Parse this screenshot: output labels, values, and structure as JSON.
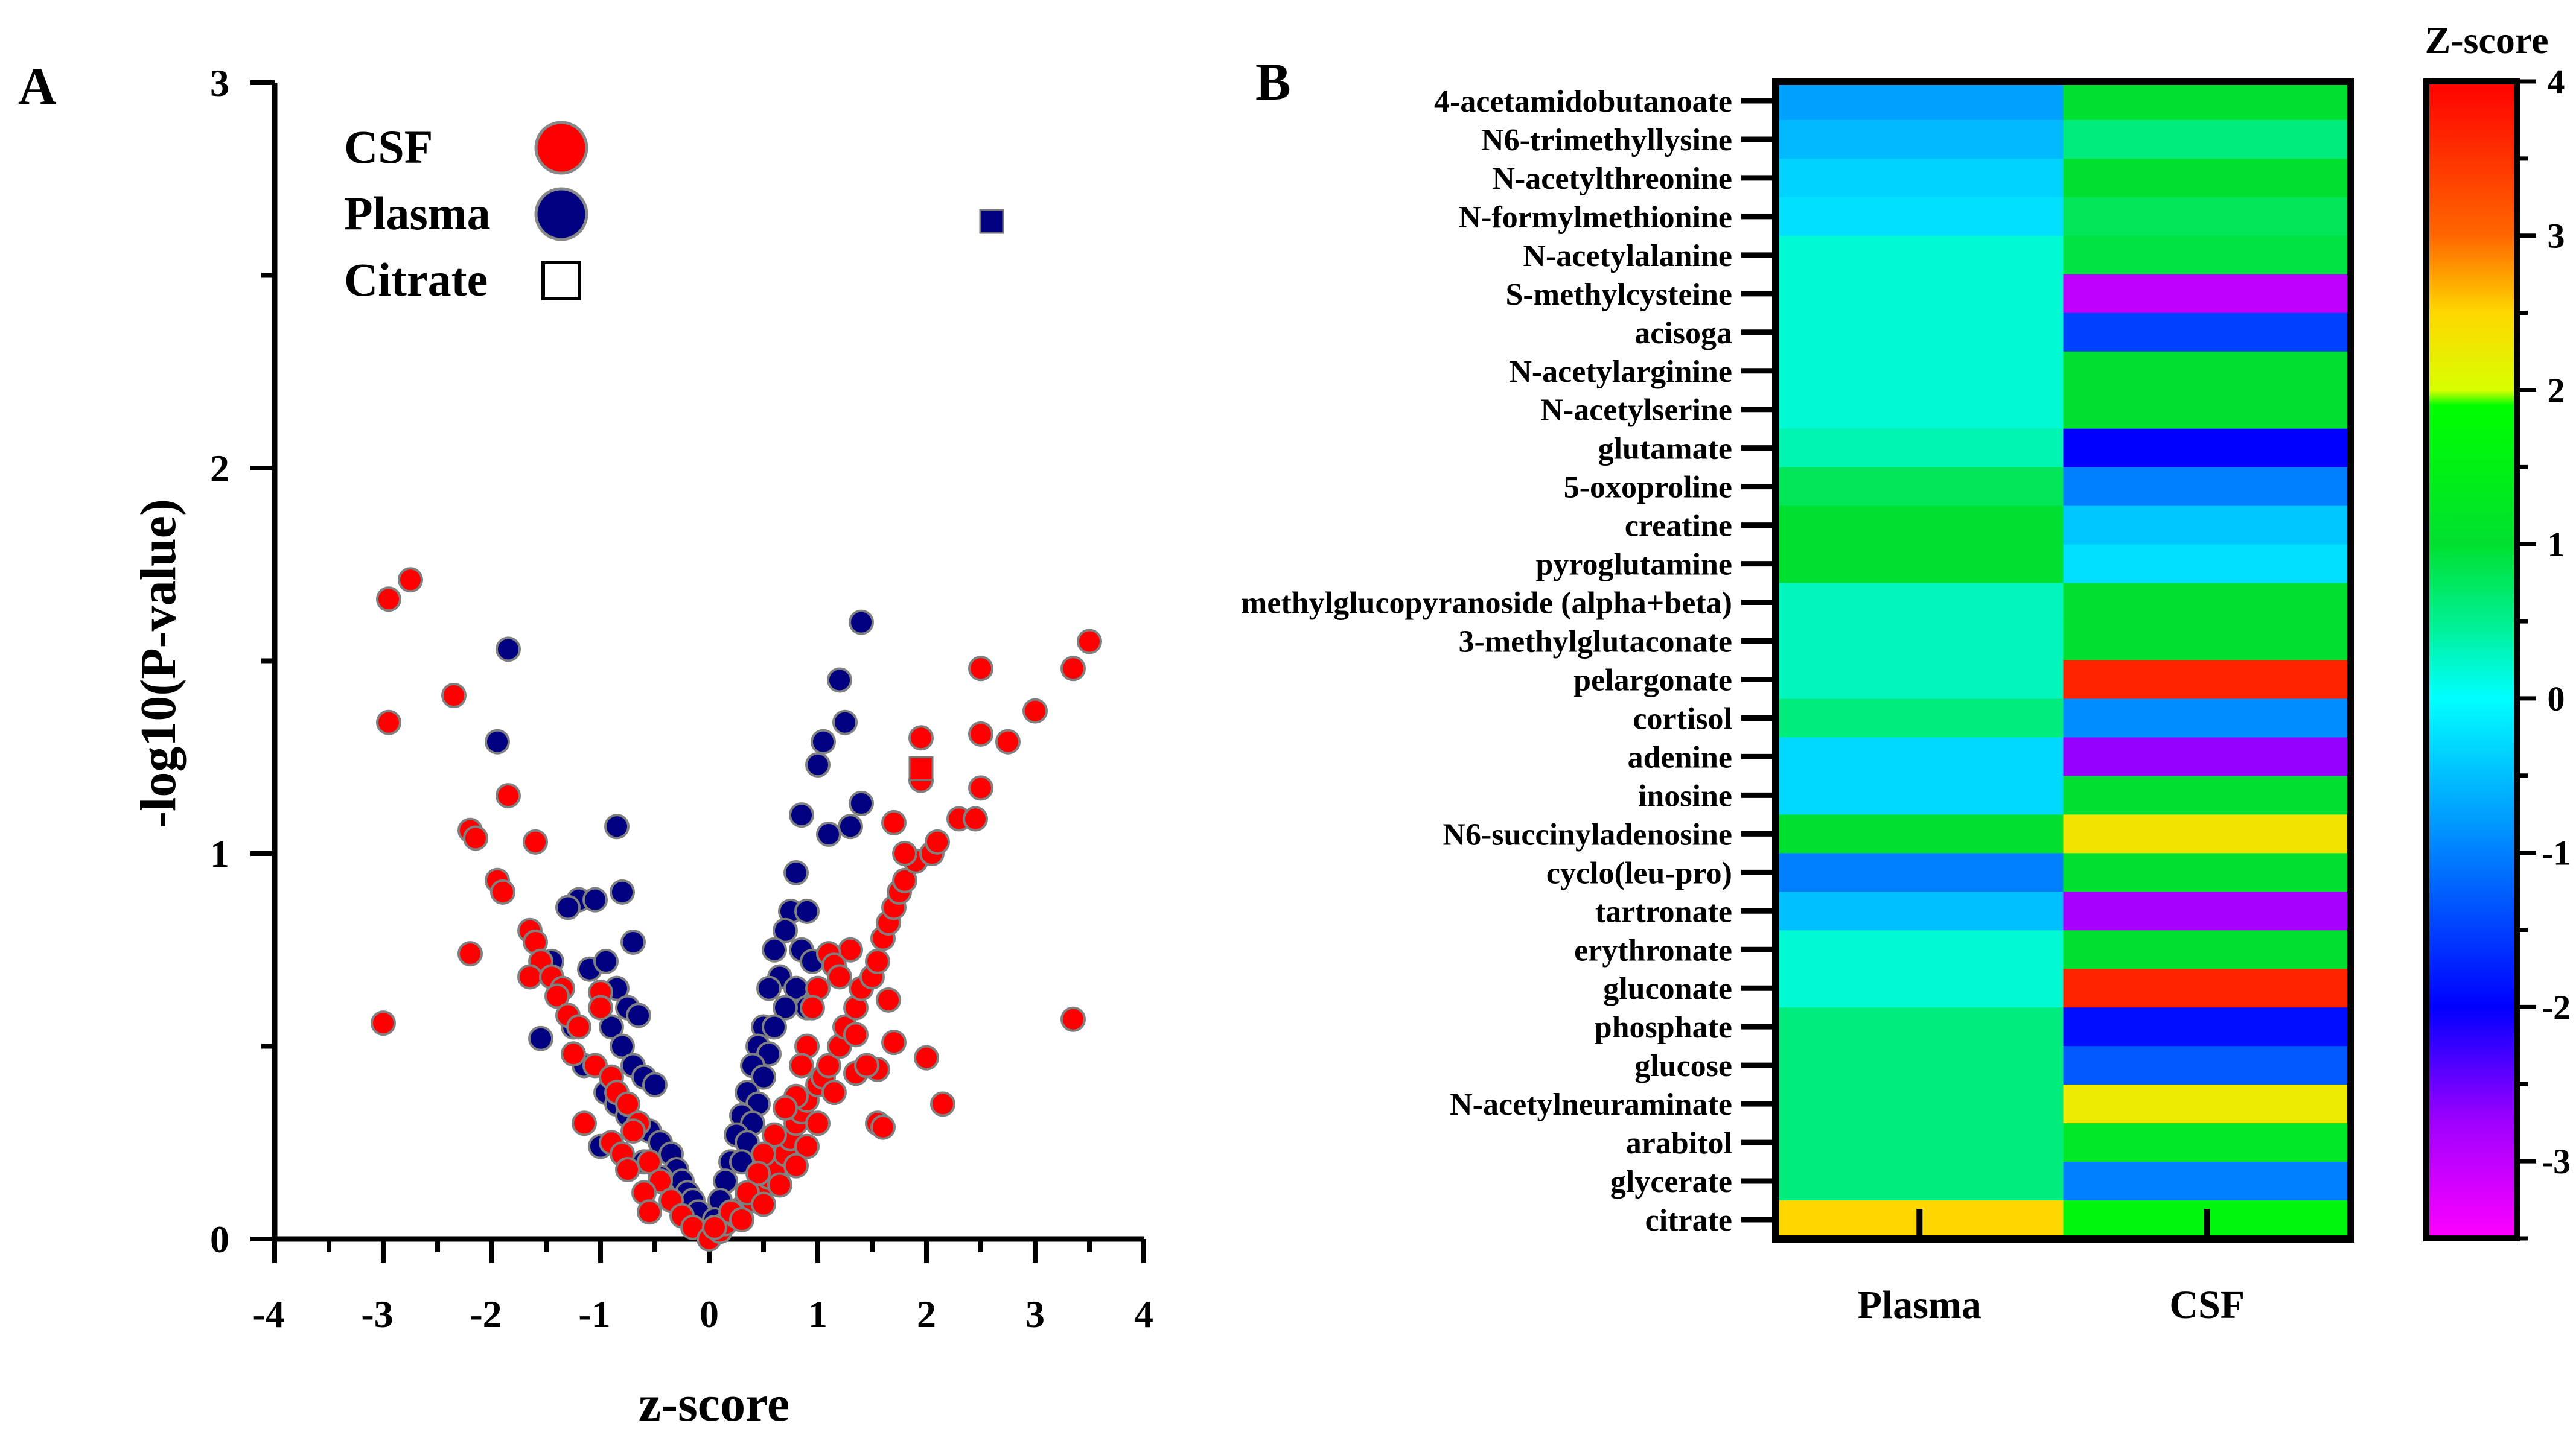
{
  "chart_data": [
    {
      "type": "scatter",
      "panel_label": "A",
      "xlabel": "z-score",
      "ylabel": "-log10(P-value)",
      "xlim": [
        -4,
        4
      ],
      "ylim": [
        0,
        3
      ],
      "x_ticks": [
        "-4",
        "-3",
        "-2",
        "-1",
        "0",
        "1",
        "2",
        "3",
        "4"
      ],
      "y_ticks": [
        "0",
        "1",
        "2",
        "3"
      ],
      "legend": [
        {
          "label": "CSF",
          "marker": "circle",
          "color": "#ff0000"
        },
        {
          "label": "Plasma",
          "marker": "circle",
          "color": "#000080"
        },
        {
          "label": "Citrate",
          "marker": "square",
          "color": "#ffffff"
        }
      ],
      "series": [
        {
          "name": "Plasma",
          "color": "#000080",
          "points": [
            [
              -1.85,
              1.53
            ],
            [
              -1.95,
              1.29
            ],
            [
              -0.85,
              1.07
            ],
            [
              -1.2,
              0.88
            ],
            [
              -1.05,
              0.88
            ],
            [
              -0.8,
              0.9
            ],
            [
              -1.3,
              0.86
            ],
            [
              -0.7,
              0.77
            ],
            [
              -1.45,
              0.72
            ],
            [
              -1.1,
              0.7
            ],
            [
              -0.95,
              0.72
            ],
            [
              -0.85,
              0.65
            ],
            [
              -0.75,
              0.6
            ],
            [
              -0.65,
              0.58
            ],
            [
              -1.25,
              0.55
            ],
            [
              -0.9,
              0.55
            ],
            [
              -1.55,
              0.52
            ],
            [
              -1.15,
              0.45
            ],
            [
              -0.8,
              0.5
            ],
            [
              -0.7,
              0.45
            ],
            [
              -0.6,
              0.42
            ],
            [
              -0.5,
              0.4
            ],
            [
              -0.95,
              0.38
            ],
            [
              -0.85,
              0.35
            ],
            [
              -0.75,
              0.32
            ],
            [
              -0.65,
              0.3
            ],
            [
              -0.55,
              0.28
            ],
            [
              -0.45,
              0.25
            ],
            [
              -0.35,
              0.22
            ],
            [
              -0.3,
              0.18
            ],
            [
              -0.25,
              0.15
            ],
            [
              -0.2,
              0.12
            ],
            [
              -0.15,
              0.1
            ],
            [
              -0.1,
              0.07
            ],
            [
              -1.0,
              0.24
            ],
            [
              -0.6,
              0.2
            ],
            [
              -0.45,
              0.16
            ],
            [
              1.4,
              1.6
            ],
            [
              1.2,
              1.45
            ],
            [
              1.25,
              1.34
            ],
            [
              1.0,
              1.23
            ],
            [
              1.05,
              1.29
            ],
            [
              1.4,
              1.13
            ],
            [
              1.3,
              1.07
            ],
            [
              1.1,
              1.05
            ],
            [
              0.85,
              1.1
            ],
            [
              0.8,
              0.95
            ],
            [
              0.75,
              0.85
            ],
            [
              0.9,
              0.85
            ],
            [
              0.7,
              0.8
            ],
            [
              0.6,
              0.75
            ],
            [
              0.85,
              0.75
            ],
            [
              0.95,
              0.72
            ],
            [
              0.65,
              0.68
            ],
            [
              0.55,
              0.65
            ],
            [
              0.8,
              0.65
            ],
            [
              0.9,
              0.6
            ],
            [
              0.7,
              0.6
            ],
            [
              0.5,
              0.55
            ],
            [
              0.6,
              0.55
            ],
            [
              0.45,
              0.5
            ],
            [
              0.55,
              0.48
            ],
            [
              0.4,
              0.45
            ],
            [
              0.5,
              0.42
            ],
            [
              0.35,
              0.38
            ],
            [
              0.45,
              0.35
            ],
            [
              0.3,
              0.32
            ],
            [
              0.4,
              0.3
            ],
            [
              0.25,
              0.27
            ],
            [
              0.35,
              0.25
            ],
            [
              0.2,
              0.2
            ],
            [
              0.3,
              0.2
            ],
            [
              0.15,
              0.15
            ],
            [
              0.1,
              0.1
            ],
            [
              0.05,
              0.05
            ]
          ]
        },
        {
          "name": "CSF",
          "color": "#ff0000",
          "points": [
            [
              -2.75,
              1.71
            ],
            [
              -2.95,
              1.66
            ],
            [
              -2.95,
              1.34
            ],
            [
              -2.35,
              1.41
            ],
            [
              -3.0,
              0.56
            ],
            [
              -2.2,
              1.06
            ],
            [
              -2.15,
              1.04
            ],
            [
              -1.85,
              1.15
            ],
            [
              -1.6,
              1.03
            ],
            [
              -2.2,
              0.74
            ],
            [
              -1.95,
              0.93
            ],
            [
              -1.9,
              0.9
            ],
            [
              -1.65,
              0.8
            ],
            [
              -1.6,
              0.77
            ],
            [
              -1.55,
              0.72
            ],
            [
              -1.65,
              0.68
            ],
            [
              -1.45,
              0.68
            ],
            [
              -1.35,
              0.65
            ],
            [
              -1.4,
              0.63
            ],
            [
              -1.3,
              0.58
            ],
            [
              -1.2,
              0.55
            ],
            [
              -1.0,
              0.64
            ],
            [
              -1.25,
              0.48
            ],
            [
              -1.05,
              0.45
            ],
            [
              -0.9,
              0.42
            ],
            [
              -1.0,
              0.6
            ],
            [
              -0.85,
              0.38
            ],
            [
              -0.75,
              0.35
            ],
            [
              -0.65,
              0.3
            ],
            [
              -0.7,
              0.28
            ],
            [
              -1.15,
              0.3
            ],
            [
              -0.9,
              0.25
            ],
            [
              -0.8,
              0.22
            ],
            [
              -0.55,
              0.2
            ],
            [
              -0.75,
              0.18
            ],
            [
              -0.45,
              0.15
            ],
            [
              -0.6,
              0.12
            ],
            [
              -0.35,
              0.1
            ],
            [
              -0.55,
              0.07
            ],
            [
              -0.25,
              0.06
            ],
            [
              -0.15,
              0.03
            ],
            [
              0.0,
              0.0
            ],
            [
              0.1,
              0.02
            ],
            [
              0.15,
              0.04
            ],
            [
              0.25,
              0.06
            ],
            [
              0.3,
              0.08
            ],
            [
              0.4,
              0.1
            ],
            [
              0.5,
              0.13
            ],
            [
              0.55,
              0.16
            ],
            [
              0.6,
              0.18
            ],
            [
              0.7,
              0.22
            ],
            [
              0.75,
              0.26
            ],
            [
              0.8,
              0.3
            ],
            [
              0.85,
              0.33
            ],
            [
              0.9,
              0.36
            ],
            [
              1.0,
              0.4
            ],
            [
              1.05,
              0.42
            ],
            [
              1.1,
              0.45
            ],
            [
              1.2,
              0.5
            ],
            [
              1.25,
              0.55
            ],
            [
              1.35,
              0.6
            ],
            [
              1.4,
              0.65
            ],
            [
              1.5,
              0.68
            ],
            [
              1.55,
              0.72
            ],
            [
              1.6,
              0.78
            ],
            [
              1.65,
              0.82
            ],
            [
              1.7,
              0.86
            ],
            [
              1.75,
              0.9
            ],
            [
              1.8,
              0.93
            ],
            [
              1.9,
              0.98
            ],
            [
              1.8,
              1.0
            ],
            [
              2.05,
              1.0
            ],
            [
              2.1,
              1.03
            ],
            [
              2.3,
              1.09
            ],
            [
              2.45,
              1.09
            ],
            [
              2.5,
              1.17
            ],
            [
              2.5,
              1.31
            ],
            [
              2.75,
              1.29
            ],
            [
              2.5,
              1.48
            ],
            [
              3.0,
              1.37
            ],
            [
              3.35,
              1.48
            ],
            [
              3.5,
              1.55
            ],
            [
              3.35,
              0.57
            ],
            [
              1.7,
              1.08
            ],
            [
              1.95,
              1.3
            ],
            [
              1.95,
              1.19
            ],
            [
              1.65,
              0.62
            ],
            [
              1.7,
              0.51
            ],
            [
              2.0,
              0.47
            ],
            [
              1.55,
              0.44
            ],
            [
              1.35,
              0.43
            ],
            [
              1.45,
              0.45
            ],
            [
              1.55,
              0.3
            ],
            [
              1.6,
              0.29
            ],
            [
              2.15,
              0.35
            ],
            [
              1.3,
              0.75
            ],
            [
              1.1,
              0.74
            ],
            [
              1.15,
              0.71
            ],
            [
              1.2,
              0.68
            ],
            [
              1.0,
              0.65
            ],
            [
              0.95,
              0.6
            ],
            [
              1.35,
              0.53
            ],
            [
              0.9,
              0.5
            ],
            [
              0.85,
              0.45
            ],
            [
              1.15,
              0.38
            ],
            [
              0.8,
              0.37
            ],
            [
              0.7,
              0.34
            ],
            [
              1.0,
              0.3
            ],
            [
              0.6,
              0.27
            ],
            [
              0.9,
              0.24
            ],
            [
              0.5,
              0.22
            ],
            [
              0.8,
              0.19
            ],
            [
              0.45,
              0.17
            ],
            [
              0.65,
              0.14
            ],
            [
              0.35,
              0.12
            ],
            [
              0.5,
              0.09
            ],
            [
              0.2,
              0.07
            ],
            [
              0.3,
              0.05
            ],
            [
              0.05,
              0.03
            ]
          ]
        },
        {
          "name": "Citrate",
          "points": [
            {
              "x": 2.6,
              "y": 2.64,
              "color": "#000080"
            },
            {
              "x": 1.95,
              "y": 1.22,
              "color": "#ff0000"
            }
          ]
        }
      ]
    },
    {
      "type": "heatmap",
      "panel_label": "B",
      "colorbar_title": "Z-score",
      "colorbar_ticks": [
        "4",
        "3",
        "2",
        "1",
        "0",
        "-1",
        "-2",
        "-3"
      ],
      "zlim": [
        -3.5,
        4
      ],
      "columns": [
        "Plasma",
        "CSF"
      ],
      "rows": [
        "4-acetamidobutanoate",
        "N6-trimethyllysine",
        "N-acetylthreonine",
        "N-formylmethionine",
        "N-acetylalanine",
        "S-methylcysteine",
        "acisoga",
        "N-acetylarginine",
        "N-acetylserine",
        "glutamate",
        "5-oxoproline",
        "creatine",
        "pyroglutamine",
        "methylglucopyranoside (alpha+beta)",
        "3-methylglutaconate",
        "pelargonate ",
        "cortisol",
        "adenine",
        "inosine",
        "N6-succinyladenosine",
        "cyclo(leu-pro)",
        "tartronate",
        "erythronate",
        "gluconate",
        "phosphate",
        "glucose",
        "N-acetylneuraminate",
        "arabitol",
        "glycerate",
        "citrate"
      ],
      "values": [
        [
          -0.75,
          1.0
        ],
        [
          -0.55,
          0.6
        ],
        [
          -0.35,
          1.0
        ],
        [
          -0.25,
          0.8
        ],
        [
          0.2,
          0.9
        ],
        [
          0.2,
          -3.0
        ],
        [
          0.2,
          -1.5
        ],
        [
          0.2,
          1.0
        ],
        [
          0.2,
          1.0
        ],
        [
          0.35,
          -2.0
        ],
        [
          0.8,
          -1.0
        ],
        [
          1.0,
          -0.45
        ],
        [
          1.0,
          -0.25
        ],
        [
          0.3,
          1.0
        ],
        [
          0.3,
          1.0
        ],
        [
          0.3,
          3.65
        ],
        [
          0.6,
          -0.9
        ],
        [
          -0.3,
          -2.7
        ],
        [
          -0.3,
          1.0
        ],
        [
          1.0,
          2.35
        ],
        [
          -1.0,
          1.0
        ],
        [
          -0.5,
          -2.8
        ],
        [
          0.2,
          1.0
        ],
        [
          0.2,
          3.65
        ],
        [
          0.6,
          -1.9
        ],
        [
          0.6,
          -1.3
        ],
        [
          0.6,
          2.25
        ],
        [
          0.6,
          1.2
        ],
        [
          0.6,
          -1.0
        ],
        [
          2.5,
          1.65
        ]
      ]
    }
  ]
}
